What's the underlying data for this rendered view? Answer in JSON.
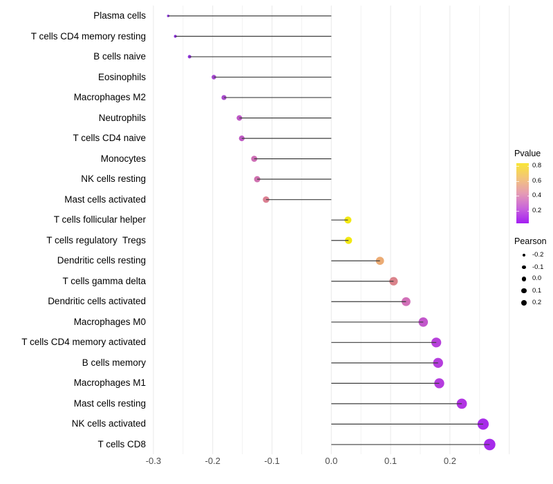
{
  "chart_data": {
    "type": "lollipop",
    "orientation": "horizontal",
    "title": "",
    "xlabel": "",
    "ylabel": "",
    "xlim": [
      -0.33,
      0.31
    ],
    "x_ticks": [
      -0.3,
      -0.2,
      -0.1,
      0.0,
      0.1,
      0.2
    ],
    "x_tick_labels": [
      "-0.3",
      "-0.2",
      "-0.1",
      "0.0",
      "0.1",
      "0.2"
    ],
    "grid": {
      "on": true,
      "minor_step": 0.05,
      "major_step": 0.1,
      "major_color": "#e9e9e9",
      "minor_color": "#f2f2f2"
    },
    "stem_color": "#3d3d3d",
    "categories": [
      "Plasma cells",
      "T cells CD4 memory resting",
      "B cells naive",
      "Eosinophils",
      "Macrophages M2",
      "Neutrophils",
      "T cells CD4 naive",
      "Monocytes",
      "NK cells resting",
      "Mast cells activated",
      "T cells follicular helper",
      "T cells regulatory  Tregs",
      "Dendritic cells resting",
      "T cells gamma delta",
      "Dendritic cells activated",
      "Macrophages M0",
      "T cells CD4 memory activated",
      "B cells memory",
      "Macrophages M1",
      "Mast cells resting",
      "NK cells activated",
      "T cells CD8"
    ],
    "series": [
      {
        "name": "Pearson",
        "values": [
          -0.275,
          -0.263,
          -0.239,
          -0.198,
          -0.181,
          -0.155,
          -0.151,
          -0.13,
          -0.125,
          -0.11,
          0.028,
          0.029,
          0.082,
          0.105,
          0.126,
          0.155,
          0.177,
          0.18,
          0.182,
          0.22,
          0.256,
          0.267
        ]
      }
    ],
    "points": [
      {
        "label": "Plasma cells",
        "pearson": -0.275,
        "pvalue": 0.05,
        "color": "#8A2BE0",
        "r": 1.8
      },
      {
        "label": "T cells CD4 memory resting",
        "pearson": -0.263,
        "pvalue": 0.06,
        "color": "#8D2CDF",
        "r": 2.1
      },
      {
        "label": "B cells naive",
        "pearson": -0.239,
        "pvalue": 0.08,
        "color": "#9134DB",
        "r": 2.5
      },
      {
        "label": "Eosinophils",
        "pearson": -0.198,
        "pvalue": 0.15,
        "color": "#A347CE",
        "r": 3.3
      },
      {
        "label": "Macrophages M2",
        "pearson": -0.181,
        "pvalue": 0.17,
        "color": "#A84BCB",
        "r": 3.6
      },
      {
        "label": "Neutrophils",
        "pearson": -0.155,
        "pvalue": 0.25,
        "color": "#BE58C6",
        "r": 4.0
      },
      {
        "label": "T cells CD4 naive",
        "pearson": -0.151,
        "pvalue": 0.26,
        "color": "#BF5AC4",
        "r": 4.1
      },
      {
        "label": "Monocytes",
        "pearson": -0.13,
        "pvalue": 0.32,
        "color": "#CC6DB4",
        "r": 4.4
      },
      {
        "label": "NK cells resting",
        "pearson": -0.125,
        "pvalue": 0.33,
        "color": "#CE70AE",
        "r": 4.5
      },
      {
        "label": "Mast cells activated",
        "pearson": -0.11,
        "pvalue": 0.45,
        "color": "#DB8092",
        "r": 4.7
      },
      {
        "label": "T cells follicular helper",
        "pearson": 0.028,
        "pvalue": 0.8,
        "color": "#F2E813",
        "r": 5.1
      },
      {
        "label": "T cells regulatory  Tregs",
        "pearson": 0.029,
        "pvalue": 0.8,
        "color": "#F2E813",
        "r": 5.2
      },
      {
        "label": "Dendritic cells resting",
        "pearson": 0.082,
        "pvalue": 0.62,
        "color": "#EBAB74",
        "r": 5.9
      },
      {
        "label": "T cells gamma delta",
        "pearson": 0.105,
        "pvalue": 0.5,
        "color": "#DA838B",
        "r": 6.1
      },
      {
        "label": "Dendritic cells activated",
        "pearson": 0.126,
        "pvalue": 0.35,
        "color": "#D170B8",
        "r": 6.4
      },
      {
        "label": "Macrophages M0",
        "pearson": 0.155,
        "pvalue": 0.22,
        "color": "#C257CB",
        "r": 6.8
      },
      {
        "label": "T cells CD4 memory activated",
        "pearson": 0.177,
        "pvalue": 0.15,
        "color": "#B741DB",
        "r": 7.1
      },
      {
        "label": "B cells memory",
        "pearson": 0.18,
        "pvalue": 0.14,
        "color": "#B53EDD",
        "r": 7.2
      },
      {
        "label": "Macrophages M1",
        "pearson": 0.182,
        "pvalue": 0.14,
        "color": "#B43CDE",
        "r": 7.2
      },
      {
        "label": "Mast cells resting",
        "pearson": 0.22,
        "pvalue": 0.1,
        "color": "#B134E3",
        "r": 7.4
      },
      {
        "label": "NK cells activated",
        "pearson": 0.256,
        "pvalue": 0.06,
        "color": "#A72CE9",
        "r": 8.1
      },
      {
        "label": "T cells CD8",
        "pearson": 0.267,
        "pvalue": 0.05,
        "color": "#A62BEA",
        "r": 8.3
      }
    ]
  },
  "legend": {
    "pvalue": {
      "title": "Pvalue",
      "ticks": [
        "0.8",
        "0.6",
        "0.4",
        "0.2"
      ],
      "gradient": [
        "#F9E636",
        "#F3C47B",
        "#E59CB3",
        "#C964DB",
        "#A31EF2"
      ],
      "range": [
        0.03,
        0.84
      ]
    },
    "pearson": {
      "title": "Pearson",
      "items": [
        {
          "label": "-0.2",
          "r": 2.2
        },
        {
          "label": "-0.1",
          "r": 2.7
        },
        {
          "label": "0.0",
          "r": 3.3
        },
        {
          "label": "0.1",
          "r": 3.7
        },
        {
          "label": "0.2",
          "r": 4.2
        }
      ]
    }
  },
  "colors": {
    "background": "#ffffff",
    "axis_text": "#4d4d4d",
    "label_text": "#000000"
  }
}
